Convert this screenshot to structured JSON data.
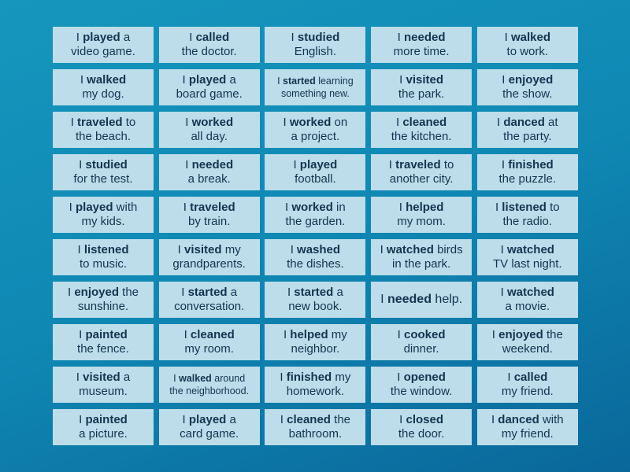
{
  "cards": [
    [
      "I ",
      "played",
      " a",
      "video game."
    ],
    [
      "I ",
      "called",
      "",
      "the doctor."
    ],
    [
      "I ",
      "studied",
      "",
      "English."
    ],
    [
      "I ",
      "needed",
      "",
      "more time."
    ],
    [
      "I ",
      "walked",
      "",
      "to work."
    ],
    [
      "I ",
      "walked",
      "",
      "my dog."
    ],
    [
      "I ",
      "played",
      " a",
      "board game."
    ],
    [
      "I ",
      "started",
      " learning",
      "something new."
    ],
    [
      "I ",
      "visited",
      "",
      "the park."
    ],
    [
      "I ",
      "enjoyed",
      "",
      "the show."
    ],
    [
      "I ",
      "traveled",
      " to",
      "the beach."
    ],
    [
      "I ",
      "worked",
      "",
      "all day."
    ],
    [
      "I ",
      "worked",
      " on",
      "a project."
    ],
    [
      "I ",
      "cleaned",
      "",
      "the kitchen."
    ],
    [
      "I ",
      "danced",
      " at",
      "the party."
    ],
    [
      "I ",
      "studied",
      "",
      "for the test."
    ],
    [
      "I ",
      "needed",
      "",
      "a break."
    ],
    [
      "I ",
      "played",
      "",
      "football."
    ],
    [
      "I ",
      "traveled",
      " to",
      "another city."
    ],
    [
      "I ",
      "finished",
      "",
      "the puzzle."
    ],
    [
      "I ",
      "played",
      " with",
      "my kids."
    ],
    [
      "I ",
      "traveled",
      "",
      "by train."
    ],
    [
      "I ",
      "worked",
      " in",
      "the garden."
    ],
    [
      "I ",
      "helped",
      "",
      "my mom."
    ],
    [
      "I ",
      "listened",
      " to",
      "the radio."
    ],
    [
      "I ",
      "listened",
      "",
      "to music."
    ],
    [
      "I ",
      "visited",
      " my",
      "grandparents."
    ],
    [
      "I ",
      "washed",
      "",
      "the dishes."
    ],
    [
      "I ",
      "watched",
      " birds",
      "in the park."
    ],
    [
      "I ",
      "watched",
      "",
      "TV last night."
    ],
    [
      "I ",
      "enjoyed",
      " the",
      "sunshine."
    ],
    [
      "I ",
      "started",
      " a",
      "conversation."
    ],
    [
      "I ",
      "started",
      " a",
      "new book."
    ],
    [
      "I ",
      "needed",
      " help.",
      ""
    ],
    [
      "I ",
      "watched",
      "",
      "a movie."
    ],
    [
      "I ",
      "painted",
      "",
      "the fence."
    ],
    [
      "I ",
      "cleaned",
      "",
      "my room."
    ],
    [
      "I ",
      "helped",
      " my",
      "neighbor."
    ],
    [
      "I ",
      "cooked",
      "",
      "dinner."
    ],
    [
      "I ",
      "enjoyed",
      " the",
      "weekend."
    ],
    [
      "I ",
      "visited",
      " a",
      "museum."
    ],
    [
      "I ",
      "walked",
      " around",
      "the neighborhood."
    ],
    [
      "I ",
      "finished",
      " my",
      "homework."
    ],
    [
      "I ",
      "opened",
      "",
      "the window."
    ],
    [
      "I ",
      "called",
      "",
      "my friend."
    ],
    [
      "I ",
      "painted",
      "",
      "a picture."
    ],
    [
      "I ",
      "played",
      " a",
      "card game."
    ],
    [
      "I ",
      "cleaned",
      " the",
      "bathroom."
    ],
    [
      "I ",
      "closed",
      "",
      "the door."
    ],
    [
      "I ",
      "danced",
      " with",
      "my friend."
    ]
  ],
  "colors": {
    "card": "#bcdde9",
    "text": "#143452",
    "background": "#1391b7"
  }
}
